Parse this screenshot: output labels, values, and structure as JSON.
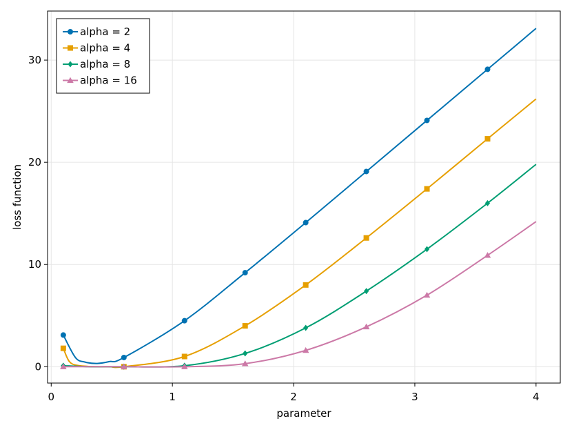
{
  "chart_data": {
    "type": "line",
    "xlabel": "parameter",
    "ylabel": "loss function",
    "xlim": [
      -0.03,
      4.2
    ],
    "ylim": [
      -1.6,
      34.8
    ],
    "xticks": [
      0,
      1,
      2,
      3,
      4
    ],
    "yticks": [
      0,
      10,
      20,
      30
    ],
    "grid": true,
    "legend_position": "top-left",
    "curve_x_range": [
      0.1,
      4.0
    ],
    "series": [
      {
        "name": "alpha = 2",
        "color": "#0072B2",
        "marker": "circle",
        "alpha": 2,
        "markers_x": [
          0.1,
          0.6,
          1.1,
          1.6,
          2.1,
          2.6,
          3.1,
          3.6
        ],
        "markers_y": [
          3.1,
          0.9,
          4.5,
          9.2,
          14.1,
          19.1,
          24.1,
          29.1
        ],
        "end_y": 33.1
      },
      {
        "name": "alpha = 4",
        "color": "#E69F00",
        "marker": "square",
        "alpha": 4,
        "markers_x": [
          0.1,
          0.6,
          1.1,
          1.6,
          2.1,
          2.6,
          3.1,
          3.6
        ],
        "markers_y": [
          1.8,
          0.0,
          1.0,
          4.0,
          8.0,
          12.6,
          17.4,
          22.3
        ],
        "end_y": 26.2
      },
      {
        "name": "alpha = 8",
        "color": "#009E73",
        "marker": "diamond",
        "alpha": 8,
        "markers_x": [
          0.1,
          0.6,
          1.1,
          1.6,
          2.1,
          2.6,
          3.1,
          3.6
        ],
        "markers_y": [
          0.1,
          0.0,
          0.1,
          1.3,
          3.8,
          7.4,
          11.5,
          16.0
        ],
        "end_y": 19.8
      },
      {
        "name": "alpha = 16",
        "color": "#CC79A7",
        "marker": "triangle",
        "alpha": 16,
        "markers_x": [
          0.1,
          0.6,
          1.1,
          1.6,
          2.1,
          2.6,
          3.1,
          3.6
        ],
        "markers_y": [
          0.0,
          0.0,
          0.0,
          0.3,
          1.6,
          3.9,
          7.0,
          10.9
        ],
        "end_y": 14.2
      }
    ]
  }
}
